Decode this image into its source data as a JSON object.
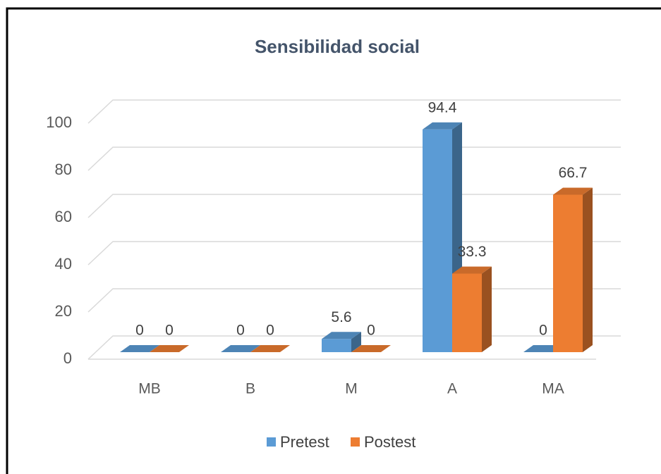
{
  "chart_data": {
    "type": "bar3d",
    "title": "Sensibilidad social",
    "categories": [
      "MB",
      "B",
      "M",
      "A",
      "MA"
    ],
    "series": [
      {
        "name": "Pretest",
        "color": "#5b9bd5",
        "values": [
          0,
          0,
          5.6,
          94.4,
          0
        ]
      },
      {
        "name": "Postest",
        "color": "#ed7d31",
        "values": [
          0,
          0,
          0,
          33.3,
          66.7
        ]
      }
    ],
    "ylim": [
      0,
      100
    ],
    "yticks": [
      0,
      20,
      40,
      60,
      80,
      100
    ],
    "grid": true,
    "legend": "bottom"
  }
}
